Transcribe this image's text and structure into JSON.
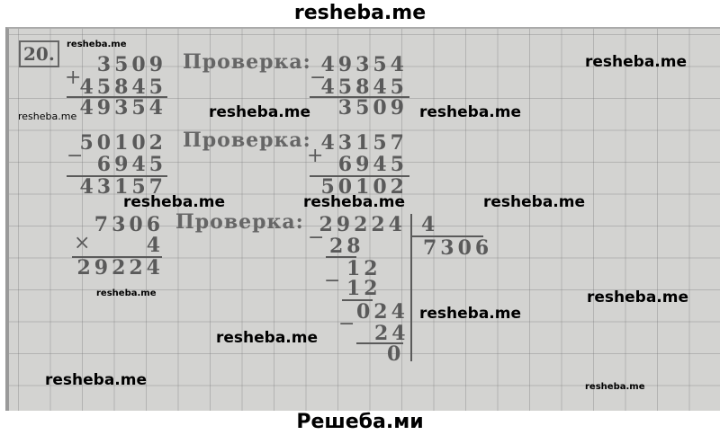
{
  "header_watermark": "resheba.me",
  "footer_watermark": "Решеба.ми",
  "exercise_number": "20.",
  "check_label": "Проверка:",
  "ex1": {
    "a": "3509",
    "op": "+",
    "b": "45845",
    "result": "49354",
    "check": {
      "a": "49354",
      "op": "−",
      "b": "45845",
      "result": "3509"
    }
  },
  "ex2": {
    "a": "50102",
    "op": "−",
    "b": "6945",
    "result": "43157",
    "check": {
      "a": "43157",
      "op": "+",
      "b": "6945",
      "result": "50102"
    }
  },
  "ex3": {
    "a": "7306",
    "op": "×",
    "b": "4",
    "result": "29224",
    "check": {
      "dividend": "29224",
      "divisor": "4",
      "quotient": "7306",
      "steps": [
        "28",
        "12",
        "12",
        "024",
        "24",
        "0"
      ],
      "minus": "−"
    }
  },
  "watermark": "resheba.me"
}
